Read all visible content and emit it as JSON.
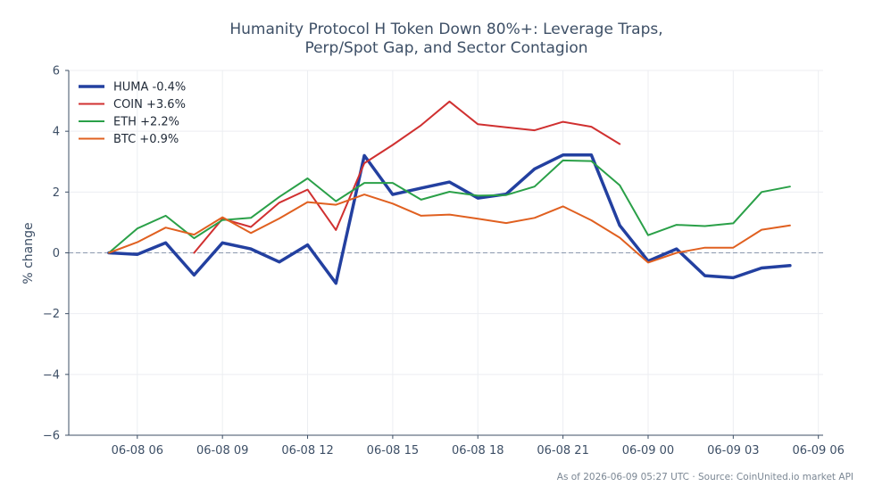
{
  "chart_data": {
    "type": "line",
    "title": [
      "Humanity Protocol H Token Down 80%+: Leverage Traps,",
      "Perp/Spot Gap, and Sector Contagion"
    ],
    "ylabel": "% change",
    "xlabel": "",
    "ylim": [
      -6,
      6
    ],
    "yticks": [
      -6,
      -4,
      -2,
      0,
      2,
      4,
      6
    ],
    "ytick_labels": [
      "−6",
      "−4",
      "−2",
      "0",
      "2",
      "4",
      "6"
    ],
    "xlim": [
      "2026-06-08 03:35",
      "2026-06-09 06:10"
    ],
    "xticks": [
      "2026-06-08 06:00",
      "2026-06-08 09:00",
      "2026-06-08 12:00",
      "2026-06-08 15:00",
      "2026-06-08 18:00",
      "2026-06-08 21:00",
      "2026-06-09 00:00",
      "2026-06-09 03:00",
      "2026-06-09 06:00"
    ],
    "xtick_labels": [
      "06-08 06",
      "06-08 09",
      "06-08 12",
      "06-08 15",
      "06-08 18",
      "06-08 21",
      "06-09 00",
      "06-09 03",
      "06-09 06"
    ],
    "grid": true,
    "legend_position": "top-left",
    "zero_line": true,
    "series": [
      {
        "name": "HUMA -0.4%",
        "color": "#2340a0",
        "x": [
          "2026-06-08 05:00",
          "2026-06-08 06:00",
          "2026-06-08 07:00",
          "2026-06-08 08:00",
          "2026-06-08 09:00",
          "2026-06-08 10:00",
          "2026-06-08 11:00",
          "2026-06-08 12:00",
          "2026-06-08 13:00",
          "2026-06-08 14:00",
          "2026-06-08 15:00",
          "2026-06-08 16:00",
          "2026-06-08 17:00",
          "2026-06-08 18:00",
          "2026-06-08 19:00",
          "2026-06-08 20:00",
          "2026-06-08 21:00",
          "2026-06-08 22:00",
          "2026-06-08 23:00",
          "2026-06-09 00:00",
          "2026-06-09 01:00",
          "2026-06-09 02:00",
          "2026-06-09 03:00",
          "2026-06-09 04:00",
          "2026-06-09 05:00"
        ],
        "y": [
          0.0,
          -0.05,
          0.33,
          -0.73,
          0.33,
          0.13,
          -0.3,
          0.26,
          -1.0,
          3.2,
          1.92,
          2.13,
          2.33,
          1.8,
          1.93,
          2.76,
          3.22,
          3.22,
          0.9,
          -0.27,
          0.13,
          -0.75,
          -0.82,
          -0.5,
          -0.42
        ]
      },
      {
        "name": "COIN +3.6%",
        "color": "#d03030",
        "x": [
          "2026-06-08 08:00",
          "2026-06-08 09:00",
          "2026-06-08 10:00",
          "2026-06-08 11:00",
          "2026-06-08 12:00",
          "2026-06-08 13:00",
          "2026-06-08 14:00",
          "2026-06-08 15:00",
          "2026-06-08 16:00",
          "2026-06-08 17:00",
          "2026-06-08 18:00",
          "2026-06-08 19:00",
          "2026-06-08 20:00",
          "2026-06-08 21:00",
          "2026-06-08 22:00",
          "2026-06-08 23:00"
        ],
        "y": [
          0.0,
          1.12,
          0.85,
          1.65,
          2.08,
          0.75,
          2.95,
          3.55,
          4.2,
          4.98,
          4.23,
          4.13,
          4.03,
          4.31,
          4.15,
          3.58
        ]
      },
      {
        "name": "ETH +2.2%",
        "color": "#2aa048",
        "x": [
          "2026-06-08 05:00",
          "2026-06-08 06:00",
          "2026-06-08 07:00",
          "2026-06-08 08:00",
          "2026-06-08 09:00",
          "2026-06-08 10:00",
          "2026-06-08 11:00",
          "2026-06-08 12:00",
          "2026-06-08 13:00",
          "2026-06-08 14:00",
          "2026-06-08 15:00",
          "2026-06-08 16:00",
          "2026-06-08 17:00",
          "2026-06-08 18:00",
          "2026-06-08 19:00",
          "2026-06-08 20:00",
          "2026-06-08 21:00",
          "2026-06-08 22:00",
          "2026-06-08 23:00",
          "2026-06-09 00:00",
          "2026-06-09 01:00",
          "2026-06-09 02:00",
          "2026-06-09 03:00",
          "2026-06-09 04:00",
          "2026-06-09 05:00"
        ],
        "y": [
          0.0,
          0.8,
          1.22,
          0.48,
          1.08,
          1.15,
          1.84,
          2.45,
          1.7,
          2.3,
          2.3,
          1.75,
          2.01,
          1.88,
          1.9,
          2.18,
          3.04,
          3.02,
          2.22,
          0.58,
          0.92,
          0.88,
          0.97,
          2.0,
          2.18
        ]
      },
      {
        "name": "BTC +0.9%",
        "color": "#e06020",
        "x": [
          "2026-06-08 05:00",
          "2026-06-08 06:00",
          "2026-06-08 07:00",
          "2026-06-08 08:00",
          "2026-06-08 09:00",
          "2026-06-08 10:00",
          "2026-06-08 11:00",
          "2026-06-08 12:00",
          "2026-06-08 13:00",
          "2026-06-08 14:00",
          "2026-06-08 15:00",
          "2026-06-08 16:00",
          "2026-06-08 17:00",
          "2026-06-08 18:00",
          "2026-06-08 19:00",
          "2026-06-08 20:00",
          "2026-06-08 21:00",
          "2026-06-08 22:00",
          "2026-06-08 23:00",
          "2026-06-09 00:00",
          "2026-06-09 01:00",
          "2026-06-09 02:00",
          "2026-06-09 03:00",
          "2026-06-09 04:00",
          "2026-06-09 05:00"
        ],
        "y": [
          0.0,
          0.35,
          0.83,
          0.6,
          1.17,
          0.65,
          1.13,
          1.67,
          1.58,
          1.92,
          1.62,
          1.22,
          1.26,
          1.12,
          0.98,
          1.15,
          1.53,
          1.07,
          0.5,
          -0.32,
          0.0,
          0.17,
          0.17,
          0.76,
          0.9
        ]
      }
    ],
    "footer": "As of 2026-06-09 05:27 UTC · Source: CoinUnited.io market API"
  }
}
